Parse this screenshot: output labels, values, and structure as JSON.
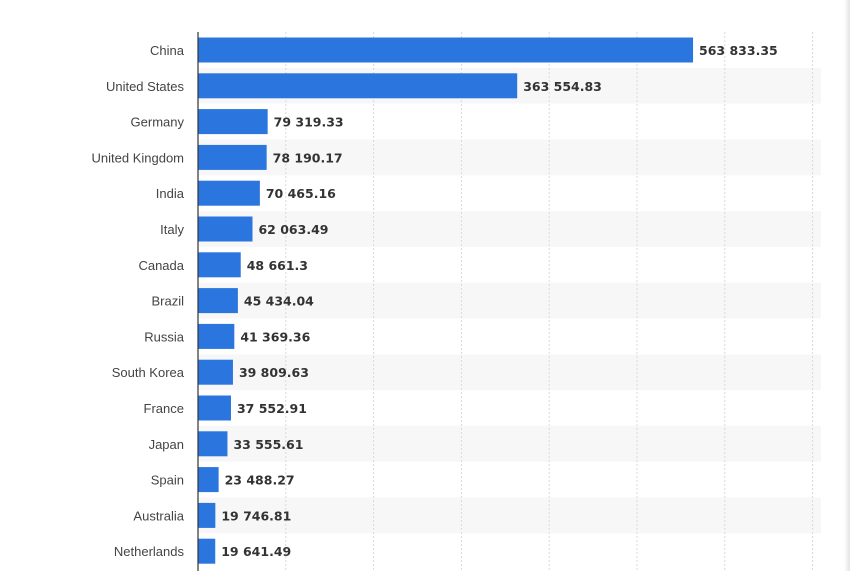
{
  "chart_data": {
    "type": "bar",
    "orientation": "horizontal",
    "title": "",
    "xlabel": "",
    "ylabel": "",
    "categories": [
      "China",
      "United States",
      "Germany",
      "United Kingdom",
      "India",
      "Italy",
      "Canada",
      "Brazil",
      "Russia",
      "South Korea",
      "France",
      "Japan",
      "Spain",
      "Australia",
      "Netherlands"
    ],
    "values": [
      563833.35,
      363554.83,
      79319.33,
      78190.17,
      70465.16,
      62063.49,
      48661.3,
      45434.04,
      41369.36,
      39809.63,
      37552.91,
      33555.61,
      23488.27,
      19746.81,
      19641.49
    ],
    "value_labels": [
      "563 833.35",
      "363 554.83",
      "79 319.33",
      "78 190.17",
      "70 465.16",
      "62 063.49",
      "48 661.3",
      "45 434.04",
      "41 369.36",
      "39 809.63",
      "37 552.91",
      "33 555.61",
      "23 488.27",
      "19 746.81",
      "19 641.49"
    ],
    "xlim": [
      0,
      700000
    ],
    "grid": true,
    "legend": "none",
    "colors": {
      "bar": "#2a75de",
      "stripe": "#f7f7f7",
      "grid": "#d9d9d9",
      "axis": "#333333",
      "category_text": "#444444",
      "value_text": "#333333"
    }
  }
}
